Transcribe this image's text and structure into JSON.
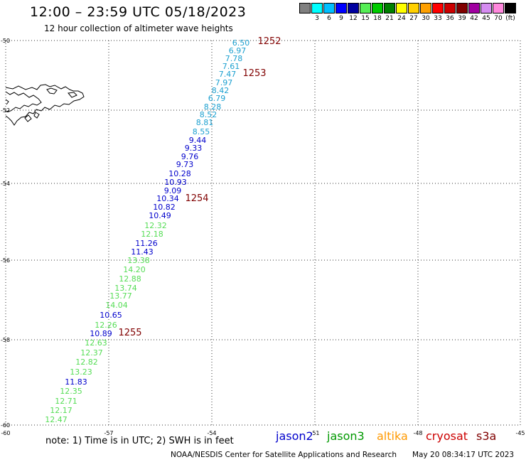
{
  "header": {
    "title": "12:00 – 23:59 UTC 05/18/2023",
    "subtitle": "12 hour collection of altimeter wave heights"
  },
  "color_scale": {
    "swatches": [
      {
        "color": "#808080",
        "label": ""
      },
      {
        "color": "#00ffff",
        "label": "3"
      },
      {
        "color": "#00bfff",
        "label": "6"
      },
      {
        "color": "#0000ff",
        "label": "9"
      },
      {
        "color": "#0000a0",
        "label": "12"
      },
      {
        "color": "#55ee55",
        "label": "15"
      },
      {
        "color": "#00cc00",
        "label": "18"
      },
      {
        "color": "#008000",
        "label": "21"
      },
      {
        "color": "#ffff00",
        "label": "24"
      },
      {
        "color": "#ffd000",
        "label": "27"
      },
      {
        "color": "#ffa000",
        "label": "30"
      },
      {
        "color": "#ff0000",
        "label": "33"
      },
      {
        "color": "#cc0000",
        "label": "36"
      },
      {
        "color": "#800000",
        "label": "39"
      },
      {
        "color": "#a000a0",
        "label": "42"
      },
      {
        "color": "#d58cf0",
        "label": "45"
      },
      {
        "color": "#ff88dd",
        "label": "70"
      },
      {
        "color": "#000000",
        "label": "(ft)"
      }
    ]
  },
  "axes": {
    "x_ticks": [
      "-60",
      "-57",
      "-54",
      "-51",
      "-48",
      "-45"
    ],
    "y_ticks": [
      "-50",
      "-52",
      "-54",
      "-56",
      "-58",
      "-60"
    ]
  },
  "track_labels": [
    "1252",
    "1253",
    "1254",
    "1255"
  ],
  "observations": [
    {
      "v": "6.50",
      "c": "#1ca0d0"
    },
    {
      "v": "6.97",
      "c": "#1ca0d0"
    },
    {
      "v": "7.78",
      "c": "#1ca0d0"
    },
    {
      "v": "7.61",
      "c": "#1ca0d0"
    },
    {
      "v": "7.47",
      "c": "#1ca0d0"
    },
    {
      "v": "7.97",
      "c": "#1ca0d0"
    },
    {
      "v": "8.42",
      "c": "#1ca0d0"
    },
    {
      "v": "6.79",
      "c": "#1ca0d0"
    },
    {
      "v": "8.28",
      "c": "#1ca0d0"
    },
    {
      "v": "8.52",
      "c": "#1ca0d0"
    },
    {
      "v": "8.81",
      "c": "#1ca0d0"
    },
    {
      "v": "8.55",
      "c": "#1ca0d0"
    },
    {
      "v": "9.44",
      "c": "#0000cc"
    },
    {
      "v": "9.33",
      "c": "#0000cc"
    },
    {
      "v": "9.76",
      "c": "#0000cc"
    },
    {
      "v": "9.73",
      "c": "#0000cc"
    },
    {
      "v": "10.28",
      "c": "#0000cc"
    },
    {
      "v": "10.93",
      "c": "#0000cc"
    },
    {
      "v": "9.09",
      "c": "#0000cc"
    },
    {
      "v": "10.34",
      "c": "#0000cc"
    },
    {
      "v": "10.82",
      "c": "#0000cc"
    },
    {
      "v": "10.49",
      "c": "#0000cc"
    },
    {
      "v": "12.32",
      "c": "#55dd55"
    },
    {
      "v": "12.18",
      "c": "#55dd55"
    },
    {
      "v": "11.26",
      "c": "#0000cc"
    },
    {
      "v": "11.43",
      "c": "#0000cc"
    },
    {
      "v": "13.38",
      "c": "#55dd55"
    },
    {
      "v": "14.20",
      "c": "#55dd55"
    },
    {
      "v": "12.88",
      "c": "#55dd55"
    },
    {
      "v": "13.74",
      "c": "#55dd55"
    },
    {
      "v": "13.77",
      "c": "#55dd55"
    },
    {
      "v": "14.04",
      "c": "#55dd55"
    },
    {
      "v": "10.65",
      "c": "#0000cc"
    },
    {
      "v": "12.26",
      "c": "#55dd55"
    },
    {
      "v": "10.89",
      "c": "#0000cc"
    },
    {
      "v": "12.63",
      "c": "#55dd55"
    },
    {
      "v": "12.37",
      "c": "#55dd55"
    },
    {
      "v": "12.82",
      "c": "#55dd55"
    },
    {
      "v": "13.23",
      "c": "#55dd55"
    },
    {
      "v": "11.83",
      "c": "#0000cc"
    },
    {
      "v": "12.35",
      "c": "#55dd55"
    },
    {
      "v": "12.71",
      "c": "#55dd55"
    },
    {
      "v": "12.17",
      "c": "#55dd55"
    },
    {
      "v": "12.47",
      "c": "#55dd55"
    }
  ],
  "footer": {
    "note": "note:  1) Time is in UTC;  2) SWH is in feet",
    "satellites": [
      {
        "name": "jason2",
        "color": "#0000cc"
      },
      {
        "name": "jason3",
        "color": "#009900"
      },
      {
        "name": "altika",
        "color": "#ff9900"
      },
      {
        "name": "cryosat",
        "color": "#cc0000"
      },
      {
        "name": "s3a",
        "color": "#800000"
      }
    ],
    "credit": "NOAA/NESDIS Center for Satellite Applications and Research",
    "generated": "May 20 08:34:17 UTC 2023"
  }
}
